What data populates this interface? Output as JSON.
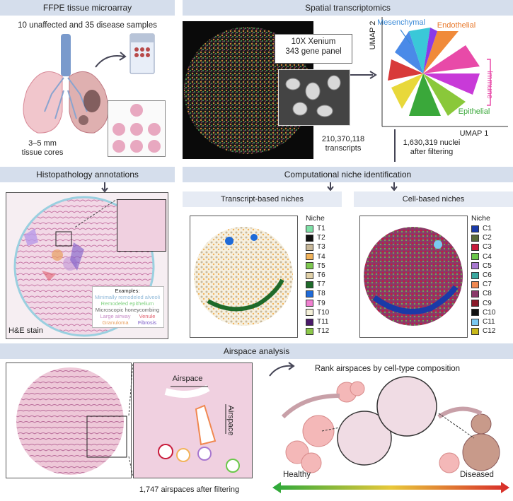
{
  "sections": {
    "ffpe": "FFPE tissue microarray",
    "spatial": "Spatial transcriptomics",
    "histo": "Histopathology annotations",
    "computational": "Computational niche identification",
    "airspace": "Airspace analysis"
  },
  "ffpe_panel": {
    "samples": "10 unaffected and 35 disease samples",
    "cores_line1": "3–5 mm",
    "cores_line2": "tissue cores"
  },
  "spatial_panel": {
    "xenium_line1": "10X Xenium",
    "xenium_line2": "343 gene panel",
    "transcripts_line1": "210,370,118",
    "transcripts_line2": "transcripts",
    "nuclei_line1": "1,630,319 nuclei",
    "nuclei_line2": "after filtering",
    "umap_x": "UMAP 1",
    "umap_y": "UMAP 2",
    "labels": {
      "mesenchymal": "Mesenchymal",
      "endothelial": "Endothelial",
      "immune": "Immune",
      "epithelial": "Epithelial"
    }
  },
  "histo_panel": {
    "stain": "H&E stain",
    "examples_title": "Examples:",
    "examples": [
      {
        "label": "Minimally remodeled alveoli",
        "color": "#8fb8d8"
      },
      {
        "label": "Remodeled epithelium",
        "color": "#7ed07e"
      },
      {
        "label": "Microscopic honeycombing",
        "color": "#666666"
      }
    ],
    "ex_row4_a": "Large airway",
    "ex_row4_b": "Venule",
    "ex_row5_a": "Granuloma",
    "ex_row5_b": "Fibrosis",
    "colors": {
      "airway": "#c68ac6",
      "venule": "#e0606e",
      "granuloma": "#e8a060",
      "fibrosis": "#7a5ac8"
    }
  },
  "niche_panel": {
    "transcript_title": "Transcript-based niches",
    "cell_title": "Cell-based niches",
    "niche_label": "Niche",
    "transcript_niches": [
      {
        "name": "T1",
        "color": "#7ee0a6"
      },
      {
        "name": "T2",
        "color": "#111111"
      },
      {
        "name": "T3",
        "color": "#c8b89a"
      },
      {
        "name": "T4",
        "color": "#f2b35a"
      },
      {
        "name": "T5",
        "color": "#7ec850"
      },
      {
        "name": "T6",
        "color": "#e0d0a8"
      },
      {
        "name": "T7",
        "color": "#1e6a2a"
      },
      {
        "name": "T8",
        "color": "#1e6ad8"
      },
      {
        "name": "T9",
        "color": "#f080d0"
      },
      {
        "name": "T10",
        "color": "#f4f0d8"
      },
      {
        "name": "T11",
        "color": "#4a1a6a"
      },
      {
        "name": "T12",
        "color": "#8cc84a"
      }
    ],
    "cell_niches": [
      {
        "name": "C1",
        "color": "#1a3aa8"
      },
      {
        "name": "C2",
        "color": "#5a6a3a"
      },
      {
        "name": "C3",
        "color": "#c81a3a"
      },
      {
        "name": "C4",
        "color": "#6ac84a"
      },
      {
        "name": "C5",
        "color": "#a878d0"
      },
      {
        "name": "C6",
        "color": "#3aa8a0"
      },
      {
        "name": "C7",
        "color": "#f08850"
      },
      {
        "name": "C8",
        "color": "#8a3a6a"
      },
      {
        "name": "C9",
        "color": "#8a1a2a"
      },
      {
        "name": "C10",
        "color": "#111111"
      },
      {
        "name": "C11",
        "color": "#7ac8f0"
      },
      {
        "name": "C12",
        "color": "#c8b81a"
      }
    ]
  },
  "airspace_panel": {
    "airspace_label": "Airspace",
    "count": "1,747 airspaces after filtering",
    "rank": "Rank airspaces by cell-type composition",
    "healthy": "Healthy",
    "diseased": "Diseased"
  }
}
